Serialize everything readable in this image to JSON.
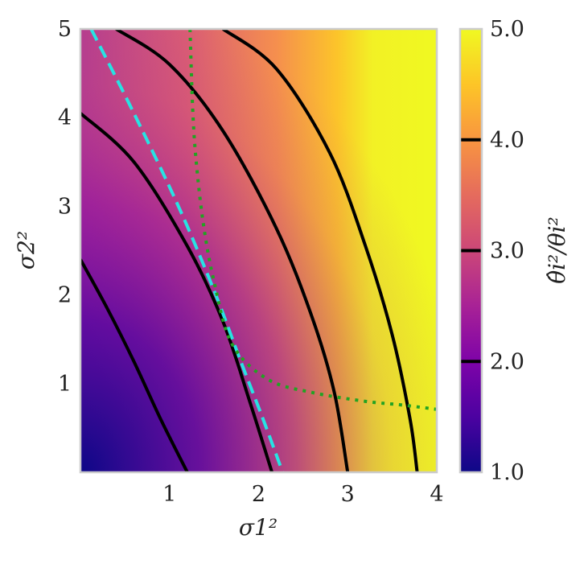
{
  "chart_data": {
    "type": "heatmap",
    "title": "",
    "xlabel": "σ1²",
    "ylabel": "σ2²",
    "xlim": [
      0,
      4
    ],
    "ylim": [
      0,
      5
    ],
    "x_ticks": [
      1,
      2,
      3,
      4
    ],
    "y_ticks": [
      1,
      2,
      3,
      4,
      5
    ],
    "x_tick_labels": [
      "1",
      "2",
      "3",
      "4"
    ],
    "y_tick_labels": [
      "1",
      "2",
      "3",
      "4",
      "5"
    ],
    "colorbar": {
      "label": "θ̂i²/θi²",
      "range": [
        1.0,
        5.0
      ],
      "colormap": "plasma",
      "ticks": [
        1.0,
        2.0,
        3.0,
        4.0,
        5.0
      ],
      "tick_labels": [
        "1.0",
        "2.0",
        "3.0",
        "4.0",
        "5.0"
      ],
      "contour_marks": [
        2.0,
        3.0,
        4.0
      ]
    },
    "grid": false,
    "legend": "none",
    "series": [
      {
        "style": "solid",
        "color": "#000000",
        "level": 2.0,
        "x": [
          0.0,
          0.3,
          0.6,
          0.9,
          1.2
        ],
        "y": [
          2.4,
          1.85,
          1.25,
          0.6,
          0.0
        ]
      },
      {
        "style": "solid",
        "color": "#000000",
        "level": 3.0,
        "x": [
          0.0,
          0.6,
          1.2,
          1.6,
          1.9,
          2.15
        ],
        "y": [
          4.05,
          3.5,
          2.55,
          1.7,
          0.8,
          0.0
        ]
      },
      {
        "style": "solid",
        "color": "#000000",
        "level": 4.0,
        "x": [
          0.4,
          1.0,
          1.6,
          2.2,
          2.6,
          2.85,
          3.0
        ],
        "y": [
          5.0,
          4.6,
          3.85,
          2.75,
          1.75,
          0.9,
          0.0
        ]
      },
      {
        "style": "solid",
        "color": "#000000",
        "level": 5.0,
        "x": [
          1.6,
          2.2,
          2.8,
          3.2,
          3.5,
          3.7,
          3.78
        ],
        "y": [
          5.0,
          4.55,
          3.6,
          2.55,
          1.55,
          0.6,
          0.0
        ]
      },
      {
        "style": "dashed",
        "color": "#27e3e3",
        "x": [
          0.12,
          0.6,
          1.1,
          1.5,
          1.8,
          2.05,
          2.27
        ],
        "y": [
          5.0,
          4.05,
          3.0,
          2.05,
          1.25,
          0.6,
          0.0
        ]
      },
      {
        "style": "dotted",
        "color": "#22a322",
        "x": [
          1.23,
          1.26,
          1.3,
          1.38,
          1.5,
          1.7,
          2.1,
          2.6,
          3.2,
          3.6,
          4.0
        ],
        "y": [
          5.0,
          4.1,
          3.5,
          2.8,
          2.15,
          1.45,
          1.05,
          0.9,
          0.8,
          0.76,
          0.71
        ]
      }
    ]
  }
}
